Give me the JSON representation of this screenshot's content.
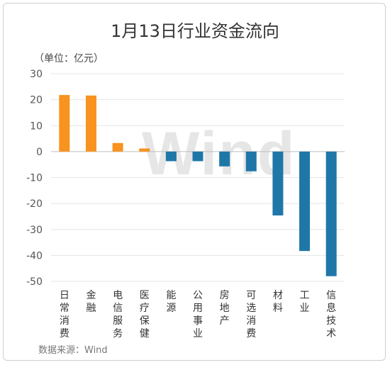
{
  "chart_data": {
    "type": "bar",
    "title": "1月13日行业资金流向",
    "unit_label": "（单位：亿元）",
    "source_label": "数据来源：Wind",
    "watermark": "Wind",
    "categories": [
      "日常消费",
      "金融",
      "电信服务",
      "医疗保健",
      "能源",
      "公用事业",
      "房地产",
      "可选消费",
      "材料",
      "工业",
      "信息技术"
    ],
    "values": [
      21.8,
      21.6,
      3.3,
      1.2,
      -3.7,
      -3.7,
      -5.7,
      -7.6,
      -24.6,
      -38.3,
      -48.0
    ],
    "ylim": [
      -50,
      30
    ],
    "yticks": [
      30,
      20,
      10,
      0,
      -10,
      -20,
      -30,
      -40,
      -50
    ],
    "grid": true,
    "colors": {
      "positive": "#f7931e",
      "negative": "#1f77a8",
      "grid": "#e5e5e5",
      "axis": "#bdbdbd"
    }
  }
}
